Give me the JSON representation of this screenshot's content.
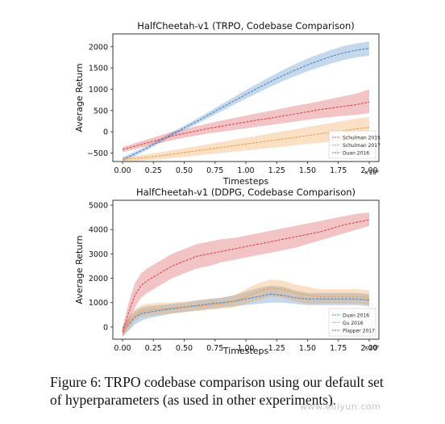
{
  "caption": {
    "line1": "Figure 6: TRPO codebase comparison using our default set",
    "line2": "of hyperparameters (as used in other experiments)."
  },
  "watermark": "www.elliyun.com",
  "colors": {
    "blue": "#4a86c5",
    "red": "#d9464f",
    "orange": "#f0a04b"
  },
  "chart_data": [
    {
      "type": "line",
      "title": "HalfCheetah-v1 (TRPO, Codebase Comparison)",
      "xlabel": "Timesteps",
      "ylabel": "Average Return",
      "x_multiplier": "×10⁶",
      "xlim": [
        0,
        2.0
      ],
      "ylim": [
        -700,
        2300
      ],
      "xticks": [
        "0.00",
        "0.25",
        "0.50",
        "0.75",
        "1.00",
        "1.25",
        "1.50",
        "1.75",
        "2.00"
      ],
      "yticks": [
        "−500",
        "0",
        "500",
        "1000",
        "1500",
        "2000"
      ],
      "ytick_values": [
        -500,
        0,
        500,
        1000,
        1500,
        2000
      ],
      "legend_position": "bottom-right",
      "x": [
        0.0,
        0.1,
        0.2,
        0.3,
        0.4,
        0.5,
        0.6,
        0.7,
        0.8,
        0.9,
        1.0,
        1.1,
        1.2,
        1.3,
        1.4,
        1.5,
        1.6,
        1.7,
        1.8,
        1.9,
        2.0
      ],
      "series": [
        {
          "name": "Schulman 2015",
          "color": "blue",
          "values": [
            -650,
            -520,
            -380,
            -220,
            -60,
            90,
            240,
            400,
            560,
            720,
            880,
            1030,
            1180,
            1320,
            1450,
            1570,
            1680,
            1780,
            1860,
            1920,
            1960
          ],
          "lower": [
            -700,
            -570,
            -430,
            -270,
            -110,
            40,
            180,
            330,
            480,
            630,
            780,
            920,
            1060,
            1190,
            1310,
            1420,
            1520,
            1610,
            1690,
            1750,
            1790
          ],
          "upper": [
            -600,
            -470,
            -330,
            -170,
            -10,
            140,
            300,
            470,
            640,
            810,
            980,
            1140,
            1300,
            1450,
            1590,
            1720,
            1830,
            1930,
            2020,
            2080,
            2120
          ]
        },
        {
          "name": "Schulman 2017",
          "color": "orange",
          "values": [
            -650,
            -630,
            -600,
            -570,
            -530,
            -490,
            -450,
            -410,
            -370,
            -330,
            -290,
            -250,
            -210,
            -170,
            -130,
            -90,
            -50,
            -10,
            30,
            70,
            100
          ],
          "lower": [
            -700,
            -690,
            -670,
            -650,
            -620,
            -590,
            -560,
            -530,
            -500,
            -470,
            -440,
            -410,
            -380,
            -350,
            -320,
            -290,
            -260,
            -230,
            -200,
            -170,
            -150
          ],
          "upper": [
            -600,
            -570,
            -530,
            -490,
            -440,
            -390,
            -340,
            -290,
            -240,
            -190,
            -140,
            -90,
            -40,
            10,
            60,
            110,
            160,
            210,
            260,
            310,
            350
          ]
        },
        {
          "name": "Duan 2016",
          "color": "red",
          "values": [
            -420,
            -340,
            -260,
            -180,
            -100,
            -40,
            20,
            80,
            130,
            180,
            230,
            280,
            320,
            370,
            420,
            470,
            520,
            560,
            600,
            640,
            700
          ],
          "lower": [
            -480,
            -410,
            -340,
            -270,
            -200,
            -140,
            -90,
            -40,
            0,
            40,
            80,
            120,
            160,
            200,
            240,
            280,
            320,
            350,
            380,
            400,
            440
          ],
          "upper": [
            -360,
            -270,
            -180,
            -90,
            0,
            60,
            130,
            200,
            260,
            320,
            380,
            440,
            490,
            550,
            610,
            660,
            720,
            780,
            840,
            900,
            1000
          ]
        }
      ]
    },
    {
      "type": "line",
      "title": "HalfCheetah-v1 (DDPG, Codebase Comparison)",
      "xlabel": "Timesteps",
      "ylabel": "Average Return",
      "x_multiplier": "×10⁶",
      "xlim": [
        0,
        2.0
      ],
      "ylim": [
        -500,
        5200
      ],
      "xticks": [
        "0.00",
        "0.25",
        "0.50",
        "0.75",
        "1.00",
        "1.25",
        "1.50",
        "1.75",
        "2.00"
      ],
      "yticks": [
        "0",
        "1000",
        "2000",
        "3000",
        "4000",
        "5000"
      ],
      "ytick_values": [
        0,
        1000,
        2000,
        3000,
        4000,
        5000
      ],
      "legend_position": "bottom-right",
      "x": [
        0.0,
        0.05,
        0.1,
        0.15,
        0.2,
        0.3,
        0.4,
        0.5,
        0.6,
        0.7,
        0.8,
        0.9,
        1.0,
        1.1,
        1.2,
        1.3,
        1.4,
        1.5,
        1.6,
        1.7,
        1.8,
        1.9,
        2.0
      ],
      "series": [
        {
          "name": "Duan 2016",
          "color": "blue",
          "values": [
            -200,
            100,
            400,
            550,
            600,
            680,
            750,
            820,
            880,
            950,
            1000,
            1050,
            1150,
            1250,
            1350,
            1300,
            1200,
            1150,
            1150,
            1150,
            1150,
            1150,
            1100
          ],
          "lower": [
            -400,
            -150,
            100,
            250,
            350,
            450,
            550,
            620,
            680,
            740,
            800,
            850,
            900,
            950,
            1000,
            1000,
            950,
            900,
            900,
            900,
            900,
            900,
            850
          ],
          "upper": [
            0,
            350,
            650,
            800,
            850,
            900,
            950,
            1000,
            1080,
            1150,
            1200,
            1300,
            1450,
            1600,
            1700,
            1650,
            1500,
            1400,
            1400,
            1400,
            1400,
            1400,
            1350
          ]
        },
        {
          "name": "Gu 2016",
          "color": "orange",
          "values": [
            -200,
            150,
            500,
            650,
            700,
            750,
            780,
            820,
            850,
            900,
            950,
            1050,
            1250,
            1450,
            1600,
            1550,
            1400,
            1300,
            1250,
            1250,
            1250,
            1250,
            1200
          ],
          "lower": [
            -400,
            -100,
            250,
            400,
            450,
            500,
            550,
            600,
            650,
            700,
            750,
            800,
            950,
            1100,
            1250,
            1200,
            1050,
            950,
            950,
            950,
            950,
            950,
            900
          ],
          "upper": [
            0,
            400,
            750,
            900,
            950,
            1000,
            1000,
            1050,
            1100,
            1150,
            1200,
            1300,
            1550,
            1800,
            1950,
            1900,
            1750,
            1650,
            1550,
            1550,
            1550,
            1550,
            1500
          ]
        },
        {
          "name": "Plapper 2017",
          "color": "red",
          "values": [
            -200,
            600,
            1300,
            1700,
            1900,
            2200,
            2500,
            2700,
            2900,
            3000,
            3100,
            3200,
            3300,
            3400,
            3500,
            3600,
            3700,
            3800,
            3900,
            4050,
            4200,
            4300,
            4400
          ],
          "lower": [
            -400,
            200,
            800,
            1200,
            1400,
            1700,
            2000,
            2200,
            2400,
            2500,
            2650,
            2750,
            2850,
            2950,
            3050,
            3150,
            3250,
            3400,
            3550,
            3700,
            3850,
            4000,
            4150
          ],
          "upper": [
            0,
            1000,
            1800,
            2200,
            2400,
            2700,
            3000,
            3200,
            3400,
            3500,
            3600,
            3650,
            3750,
            3850,
            3950,
            4050,
            4150,
            4250,
            4350,
            4450,
            4550,
            4650,
            4700
          ]
        }
      ]
    }
  ]
}
